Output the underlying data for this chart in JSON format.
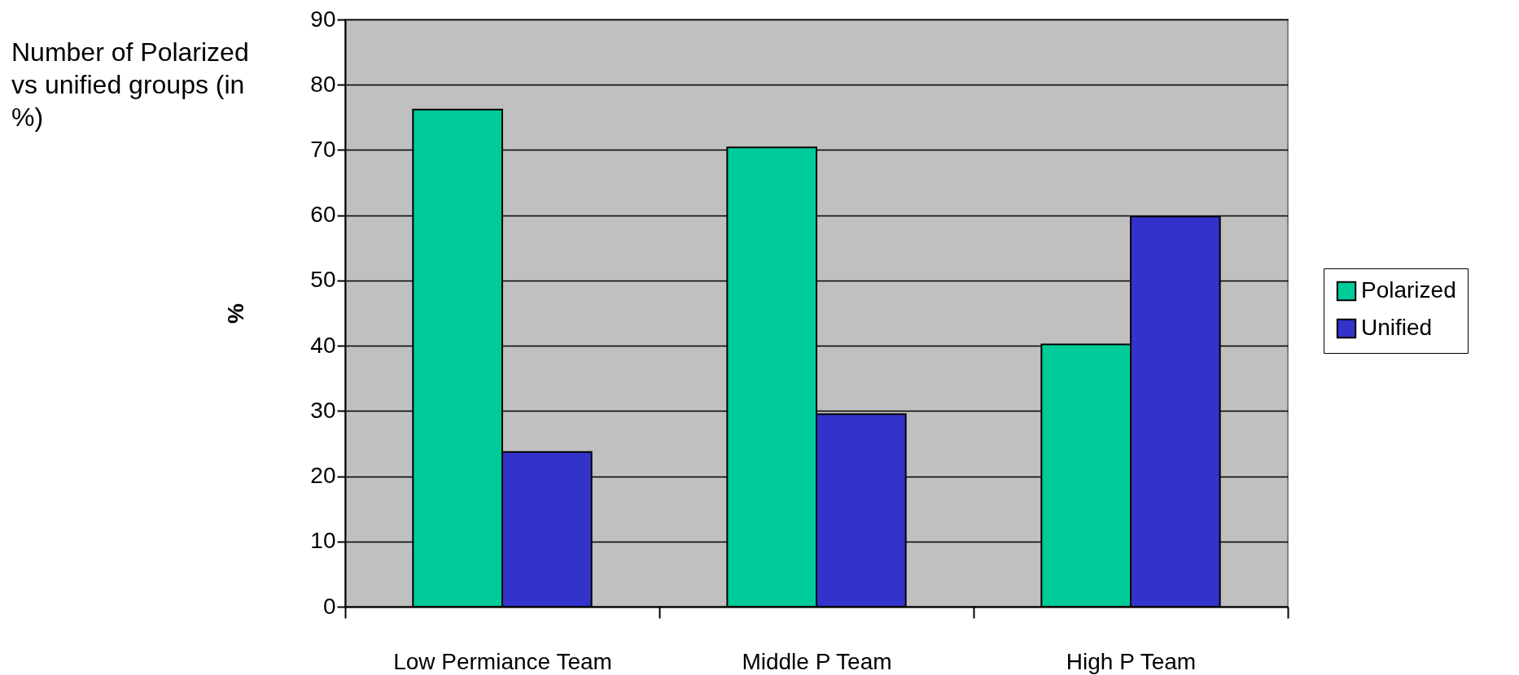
{
  "chart_data": {
    "type": "bar",
    "ylabel": "%",
    "annotations": [
      "Number of Polarized vs unified groups (in %)"
    ],
    "categories": [
      "Low Permiance Team",
      "Middle P Team",
      "High P Team"
    ],
    "series": [
      {
        "name": "Polarized",
        "color": "#00cc99",
        "values": [
          76.2,
          70.4,
          40.2
        ]
      },
      {
        "name": "Unified",
        "color": "#3333cc",
        "values": [
          23.7,
          29.5,
          59.8
        ]
      }
    ],
    "ylim": [
      0,
      90
    ],
    "yticks": [
      0,
      10,
      20,
      30,
      40,
      50,
      60,
      70,
      80,
      90
    ],
    "grid": "y",
    "legend": "right"
  }
}
